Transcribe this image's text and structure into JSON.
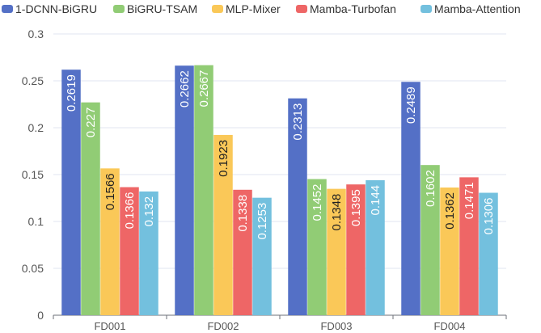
{
  "chart_data": {
    "type": "bar",
    "title": "",
    "xlabel": "",
    "ylabel": "",
    "categories": [
      "FD001",
      "FD002",
      "FD003",
      "FD004"
    ],
    "ylim": [
      0,
      0.3
    ],
    "yticks": [
      "0",
      "0.05",
      "0.1",
      "0.15",
      "0.2",
      "0.25",
      "0.3"
    ],
    "legend_position": "top",
    "grid": true,
    "series": [
      {
        "name": "1-DCNN-BiGRU",
        "color": "#5470c6",
        "values": [
          0.2619,
          0.2662,
          0.2313,
          0.2489
        ],
        "labels": [
          "0.2619",
          "0.2662",
          "0.2313",
          "0.2489"
        ]
      },
      {
        "name": "BiGRU-TSAM",
        "color": "#91cc75",
        "values": [
          0.227,
          0.2667,
          0.1452,
          0.1602
        ],
        "labels": [
          "0.227",
          "0.2667",
          "0.1452",
          "0.1602"
        ]
      },
      {
        "name": "MLP-Mixer",
        "color": "#fac858",
        "values": [
          0.1566,
          0.1923,
          0.1348,
          0.1362
        ],
        "labels": [
          "0.1566",
          "0.1923",
          "0.1348",
          "0.1362"
        ]
      },
      {
        "name": "Mamba-Turbofan",
        "color": "#ee6666",
        "values": [
          0.1366,
          0.1338,
          0.1395,
          0.1471
        ],
        "labels": [
          "0.1366",
          "0.1338",
          "0.1395",
          "0.1471"
        ]
      },
      {
        "name": "Mamba-Attention",
        "color": "#73c0de",
        "values": [
          0.132,
          0.1253,
          0.144,
          0.1306
        ],
        "labels": [
          "0.132",
          "0.1253",
          "0.144",
          "0.1306"
        ]
      }
    ]
  }
}
